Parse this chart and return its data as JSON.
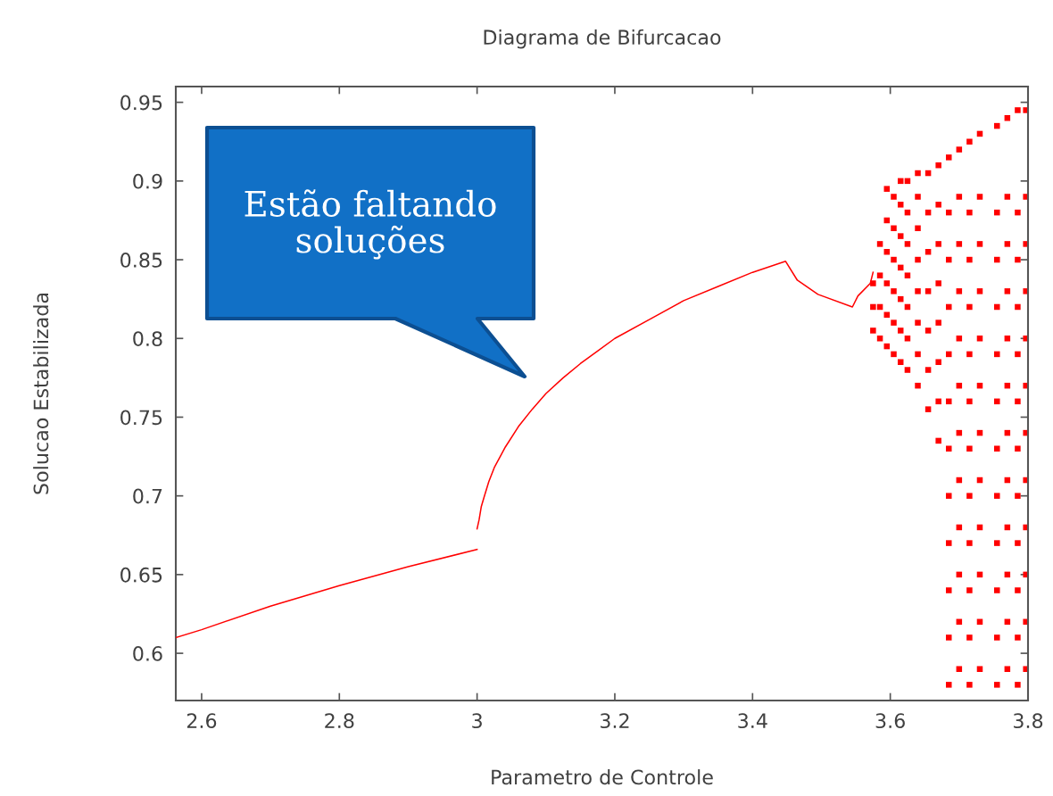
{
  "chart_data": {
    "type": "scatter",
    "title": "Diagrama de Bifurcacao",
    "xlabel": "Parametro de Controle",
    "ylabel": "Solucao Estabilizada",
    "xlim": [
      2.5625,
      3.8
    ],
    "ylim": [
      0.57,
      0.96
    ],
    "xticks": [
      2.6,
      2.8,
      3,
      3.2,
      3.4,
      3.6,
      3.8
    ],
    "yticks": [
      0.6,
      0.65,
      0.7,
      0.75,
      0.8,
      0.85,
      0.9,
      0.95
    ],
    "grid": false,
    "series": [
      {
        "type": "line",
        "color": "#ff0000",
        "marker": "none",
        "line_style": "solid",
        "x": [
          2.5625,
          2.6,
          2.7,
          2.8,
          2.9,
          3.0
        ],
        "values": [
          0.61,
          0.615,
          0.63,
          0.643,
          0.655,
          0.666
        ]
      },
      {
        "type": "line",
        "color": "#ff0000",
        "marker": "none",
        "line_style": "solid",
        "x": [
          3.0,
          3.003,
          3.006,
          3.01,
          3.017,
          3.025,
          3.041,
          3.06,
          3.08,
          3.1,
          3.125,
          3.15,
          3.175,
          3.2,
          3.25,
          3.3,
          3.35,
          3.4,
          3.448,
          3.465,
          3.495,
          3.545,
          3.553,
          3.571,
          3.575
        ],
        "values": [
          0.679,
          0.685,
          0.693,
          0.699,
          0.709,
          0.718,
          0.731,
          0.744,
          0.755,
          0.765,
          0.775,
          0.784,
          0.792,
          0.8,
          0.812,
          0.824,
          0.833,
          0.842,
          0.849,
          0.837,
          0.828,
          0.82,
          0.827,
          0.835,
          0.842
        ]
      },
      {
        "color": "#ff0000",
        "marker": "square",
        "x": [
          3.575,
          3.575,
          3.575,
          3.585,
          3.585,
          3.585,
          3.585,
          3.595,
          3.595,
          3.595,
          3.595,
          3.595,
          3.595,
          3.605,
          3.605,
          3.605,
          3.605,
          3.605,
          3.605,
          3.615,
          3.615,
          3.615,
          3.615,
          3.615,
          3.615,
          3.615,
          3.625,
          3.625,
          3.625,
          3.625,
          3.625,
          3.625,
          3.625,
          3.64,
          3.64,
          3.64,
          3.64,
          3.64,
          3.64,
          3.64,
          3.64,
          3.655,
          3.655,
          3.655,
          3.655,
          3.655,
          3.655,
          3.655,
          3.67,
          3.67,
          3.67,
          3.67,
          3.67,
          3.67,
          3.67,
          3.67,
          3.685,
          3.685,
          3.685,
          3.685,
          3.685,
          3.685,
          3.685,
          3.685,
          3.685,
          3.685,
          3.685,
          3.685,
          3.7,
          3.7,
          3.7,
          3.7,
          3.7,
          3.7,
          3.7,
          3.7,
          3.7,
          3.7,
          3.7,
          3.7,
          3.715,
          3.715,
          3.715,
          3.715,
          3.715,
          3.715,
          3.715,
          3.715,
          3.715,
          3.715,
          3.715,
          3.715,
          3.73,
          3.73,
          3.73,
          3.73,
          3.73,
          3.73,
          3.73,
          3.73,
          3.73,
          3.73,
          3.73,
          3.73,
          3.755,
          3.755,
          3.755,
          3.755,
          3.755,
          3.755,
          3.755,
          3.755,
          3.755,
          3.755,
          3.755,
          3.755,
          3.77,
          3.77,
          3.77,
          3.77,
          3.77,
          3.77,
          3.77,
          3.77,
          3.77,
          3.77,
          3.77,
          3.77,
          3.785,
          3.785,
          3.785,
          3.785,
          3.785,
          3.785,
          3.785,
          3.785,
          3.785,
          3.785,
          3.785,
          3.785,
          3.797,
          3.797,
          3.797,
          3.797,
          3.797,
          3.797,
          3.797,
          3.797,
          3.797,
          3.797,
          3.797,
          3.797
        ],
        "values": [
          0.805,
          0.82,
          0.835,
          0.8,
          0.82,
          0.84,
          0.86,
          0.795,
          0.815,
          0.835,
          0.855,
          0.875,
          0.895,
          0.79,
          0.81,
          0.83,
          0.85,
          0.87,
          0.89,
          0.785,
          0.805,
          0.825,
          0.845,
          0.865,
          0.885,
          0.9,
          0.78,
          0.8,
          0.82,
          0.84,
          0.86,
          0.88,
          0.9,
          0.77,
          0.79,
          0.81,
          0.83,
          0.85,
          0.87,
          0.89,
          0.905,
          0.755,
          0.78,
          0.805,
          0.83,
          0.855,
          0.88,
          0.905,
          0.735,
          0.76,
          0.785,
          0.81,
          0.835,
          0.86,
          0.885,
          0.91,
          0.58,
          0.61,
          0.64,
          0.67,
          0.7,
          0.73,
          0.76,
          0.79,
          0.82,
          0.85,
          0.88,
          0.915,
          0.59,
          0.62,
          0.65,
          0.68,
          0.71,
          0.74,
          0.77,
          0.8,
          0.83,
          0.86,
          0.89,
          0.92,
          0.58,
          0.61,
          0.64,
          0.67,
          0.7,
          0.73,
          0.76,
          0.79,
          0.82,
          0.85,
          0.88,
          0.925,
          0.59,
          0.62,
          0.65,
          0.68,
          0.71,
          0.74,
          0.77,
          0.8,
          0.83,
          0.86,
          0.89,
          0.93,
          0.58,
          0.61,
          0.64,
          0.67,
          0.7,
          0.73,
          0.76,
          0.79,
          0.82,
          0.85,
          0.88,
          0.935,
          0.59,
          0.62,
          0.65,
          0.68,
          0.71,
          0.74,
          0.77,
          0.8,
          0.83,
          0.86,
          0.89,
          0.94,
          0.58,
          0.61,
          0.64,
          0.67,
          0.7,
          0.73,
          0.76,
          0.79,
          0.82,
          0.85,
          0.88,
          0.945,
          0.59,
          0.62,
          0.65,
          0.68,
          0.71,
          0.74,
          0.77,
          0.8,
          0.83,
          0.86,
          0.89,
          0.945
        ]
      }
    ],
    "annotations": [
      "Estão faltando\nsoluções"
    ]
  }
}
